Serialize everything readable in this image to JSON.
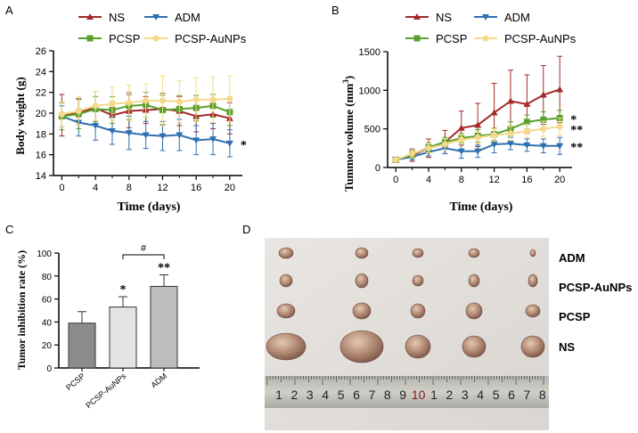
{
  "colors": {
    "NS": "#a52a2a",
    "ADM": "#2f6fb0",
    "PCSP": "#5aa02c",
    "PCSP-AuNPs": "#f5d98a",
    "bar_pcsp": "#8c8c8c",
    "bar_pcsp_aunps": "#e4e4e4",
    "bar_adm": "#bdbdbd"
  },
  "chart_data": [
    {
      "type": "line",
      "panel": "A",
      "xlabel": "Time (days)",
      "ylabel": "Body weight (g)",
      "xlim": [
        -1,
        21.5
      ],
      "ylim": [
        14,
        26
      ],
      "xticks": [
        "0",
        "4",
        "8",
        "12",
        "16",
        "20"
      ],
      "yticks": [
        "14",
        "16",
        "18",
        "20",
        "22",
        "24",
        "26"
      ],
      "x": [
        0,
        2,
        4,
        6,
        8,
        10,
        12,
        14,
        16,
        18,
        20
      ],
      "series": [
        {
          "name": "NS",
          "values": [
            19.8,
            20.1,
            20.5,
            19.8,
            20.2,
            20.3,
            20.4,
            20.2,
            19.7,
            19.9,
            19.5
          ],
          "errors": [
            2.0,
            1.3,
            1.6,
            1.3,
            1.6,
            1.3,
            1.5,
            1.4,
            1.5,
            1.4,
            1.5
          ]
        },
        {
          "name": "ADM",
          "values": [
            19.7,
            19.1,
            18.8,
            18.3,
            18.1,
            17.9,
            17.8,
            17.9,
            17.4,
            17.5,
            17.1
          ],
          "errors": [
            1.0,
            1.3,
            1.4,
            1.3,
            1.6,
            1.3,
            1.4,
            1.5,
            1.4,
            1.5,
            1.3
          ]
        },
        {
          "name": "PCSP",
          "values": [
            19.7,
            19.9,
            20.4,
            20.3,
            20.7,
            20.8,
            20.3,
            20.4,
            20.5,
            20.7,
            20.1
          ],
          "errors": [
            1.3,
            1.4,
            1.2,
            1.3,
            1.3,
            1.2,
            1.4,
            1.3,
            1.2,
            1.1,
            1.3
          ]
        },
        {
          "name": "PCSP-AuNPs",
          "values": [
            19.9,
            20.2,
            20.7,
            20.9,
            21.0,
            21.2,
            21.2,
            21.1,
            21.3,
            21.3,
            21.4
          ],
          "errors": [
            1.2,
            1.4,
            1.4,
            1.6,
            1.7,
            1.6,
            2.4,
            2.0,
            2.1,
            2.2,
            2.2
          ]
        }
      ],
      "annotations": [
        {
          "text": "*",
          "series": "ADM"
        }
      ]
    },
    {
      "type": "line",
      "panel": "B",
      "xlabel": "Time (days)",
      "ylabel_main": "Tummor volume (mm",
      "ylabel_sup": "3",
      "ylabel_end": ")",
      "xlim": [
        -1,
        21.5
      ],
      "ylim": [
        0,
        1500
      ],
      "xticks": [
        "0",
        "4",
        "8",
        "12",
        "16",
        "20"
      ],
      "yticks": [
        "0",
        "500",
        "1000",
        "1500"
      ],
      "x": [
        0,
        2,
        4,
        6,
        8,
        10,
        12,
        14,
        16,
        18,
        20
      ],
      "series": [
        {
          "name": "NS",
          "values": [
            100,
            160,
            250,
            330,
            510,
            550,
            710,
            860,
            820,
            940,
            1010
          ],
          "errors": [
            20,
            80,
            120,
            150,
            220,
            280,
            380,
            400,
            380,
            380,
            430
          ]
        },
        {
          "name": "ADM",
          "values": [
            100,
            140,
            200,
            250,
            210,
            210,
            300,
            310,
            290,
            280,
            280
          ],
          "errors": [
            20,
            40,
            50,
            70,
            90,
            80,
            110,
            80,
            80,
            90,
            110
          ]
        },
        {
          "name": "PCSP",
          "values": [
            100,
            170,
            260,
            330,
            380,
            410,
            430,
            500,
            590,
            620,
            640
          ],
          "errors": [
            20,
            50,
            60,
            60,
            60,
            80,
            80,
            90,
            90,
            100,
            100
          ]
        },
        {
          "name": "PCSP-AuNPs",
          "values": [
            100,
            180,
            250,
            300,
            360,
            390,
            420,
            440,
            470,
            500,
            530
          ],
          "errors": [
            20,
            50,
            60,
            70,
            60,
            70,
            80,
            90,
            90,
            100,
            110
          ]
        }
      ],
      "annotations": [
        {
          "text": "*",
          "series": "PCSP"
        },
        {
          "text": "**",
          "series": "PCSP-AuNPs"
        },
        {
          "text": "**",
          "series": "ADM"
        }
      ]
    },
    {
      "type": "bar",
      "panel": "C",
      "ylabel": "Tumor inhibition rate (%)",
      "ylim": [
        0,
        100
      ],
      "yticks": [
        "0",
        "20",
        "40",
        "60",
        "80",
        "100"
      ],
      "categories": [
        "PCSP",
        "PCSP-AuNPs",
        "ADM"
      ],
      "values": [
        39,
        53,
        71
      ],
      "errors": [
        10,
        9,
        10
      ],
      "annotations": [
        "",
        "*",
        "**"
      ],
      "bracket_label": "#"
    }
  ],
  "panel_labels": {
    "A": "A",
    "B": "B",
    "C": "C",
    "D": "D"
  },
  "legend_a": [
    "NS",
    "ADM",
    "PCSP",
    "PCSP-AuNPs"
  ],
  "legend_b": [
    "NS",
    "ADM",
    "PCSP",
    "PCSP-AuNPs"
  ],
  "photo": {
    "row_labels": [
      "ADM",
      "PCSP-AuNPs",
      "PCSP",
      "NS"
    ],
    "ruler_numbers": [
      "1",
      "2",
      "3",
      "4",
      "5",
      "6",
      "7",
      "8",
      "9",
      "10",
      "1",
      "2",
      "3",
      "4",
      "5",
      "6",
      "7",
      "8"
    ]
  }
}
